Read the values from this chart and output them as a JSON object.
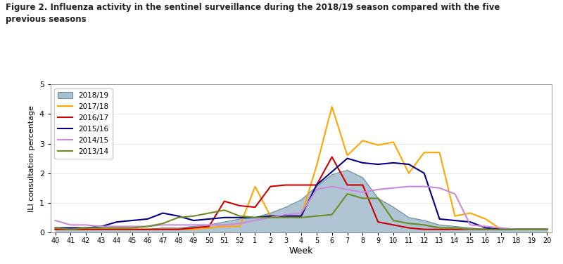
{
  "title_line1": "Figure 2. Influenza activity in the sentinel surveillance during the 2018/19 season compared with the five",
  "title_line2": "previous seasons",
  "xlabel": "Week",
  "ylabel": "ILI consultation percentage",
  "ylim": [
    0,
    5
  ],
  "yticks": [
    0,
    1,
    2,
    3,
    4,
    5
  ],
  "weeks": [
    40,
    41,
    42,
    43,
    44,
    45,
    46,
    47,
    48,
    49,
    50,
    51,
    52,
    1,
    2,
    3,
    4,
    5,
    6,
    7,
    8,
    9,
    10,
    11,
    12,
    13,
    14,
    15,
    16,
    17,
    18,
    19,
    20
  ],
  "series": {
    "2018/19": {
      "color": "#a8bfd0",
      "fill": true,
      "linecolor": "#7090a0",
      "values": [
        0.1,
        0.1,
        0.1,
        0.1,
        0.1,
        0.1,
        0.1,
        0.15,
        0.15,
        0.2,
        0.25,
        0.35,
        0.45,
        0.5,
        0.65,
        0.85,
        1.1,
        1.55,
        1.95,
        2.1,
        1.85,
        1.15,
        0.85,
        0.5,
        0.4,
        0.25,
        0.2,
        0.15,
        0.1,
        0.1,
        0.1,
        0.1,
        0.1
      ]
    },
    "2017/18": {
      "color": "#ffa500",
      "fill": false,
      "values": [
        0.1,
        0.1,
        0.1,
        0.1,
        0.1,
        0.1,
        0.1,
        0.1,
        0.1,
        0.1,
        0.15,
        0.2,
        0.2,
        1.55,
        0.55,
        0.5,
        0.55,
        2.25,
        4.25,
        2.6,
        3.1,
        2.95,
        3.05,
        2.0,
        2.7,
        2.7,
        0.55,
        0.65,
        0.45,
        0.1,
        0.1,
        0.1,
        0.1
      ]
    },
    "2016/17": {
      "color": "#cc0000",
      "fill": false,
      "values": [
        0.1,
        0.1,
        0.1,
        0.1,
        0.1,
        0.1,
        0.1,
        0.1,
        0.1,
        0.15,
        0.2,
        1.05,
        0.9,
        0.85,
        1.55,
        1.6,
        1.6,
        1.6,
        2.55,
        1.6,
        1.6,
        0.35,
        0.25,
        0.15,
        0.1,
        0.1,
        0.1,
        0.1,
        0.1,
        0.1,
        0.1,
        0.1,
        0.1
      ]
    },
    "2015/16": {
      "color": "#000080",
      "fill": false,
      "values": [
        0.15,
        0.15,
        0.15,
        0.2,
        0.35,
        0.4,
        0.45,
        0.65,
        0.55,
        0.4,
        0.45,
        0.5,
        0.5,
        0.5,
        0.55,
        0.55,
        0.55,
        1.6,
        2.05,
        2.5,
        2.35,
        2.3,
        2.35,
        2.3,
        2.0,
        0.45,
        0.4,
        0.35,
        0.15,
        0.1,
        0.1,
        0.1,
        0.1
      ]
    },
    "2014/15": {
      "color": "#cc88dd",
      "fill": false,
      "values": [
        0.4,
        0.25,
        0.25,
        0.2,
        0.2,
        0.2,
        0.2,
        0.25,
        0.25,
        0.25,
        0.25,
        0.25,
        0.3,
        0.4,
        0.5,
        0.6,
        0.65,
        1.45,
        1.55,
        1.45,
        1.35,
        1.45,
        1.5,
        1.55,
        1.55,
        1.5,
        1.3,
        0.25,
        0.2,
        0.15,
        0.1,
        0.1,
        0.1
      ]
    },
    "2013/14": {
      "color": "#6b8e23",
      "fill": false,
      "values": [
        0.15,
        0.1,
        0.15,
        0.15,
        0.15,
        0.15,
        0.2,
        0.3,
        0.5,
        0.55,
        0.65,
        0.75,
        0.55,
        0.5,
        0.5,
        0.5,
        0.5,
        0.55,
        0.6,
        1.3,
        1.15,
        1.15,
        0.4,
        0.3,
        0.25,
        0.15,
        0.15,
        0.1,
        0.1,
        0.1,
        0.1,
        0.1,
        0.1
      ]
    }
  },
  "legend_order": [
    "2018/19",
    "2017/18",
    "2016/17",
    "2015/16",
    "2014/15",
    "2013/14"
  ]
}
